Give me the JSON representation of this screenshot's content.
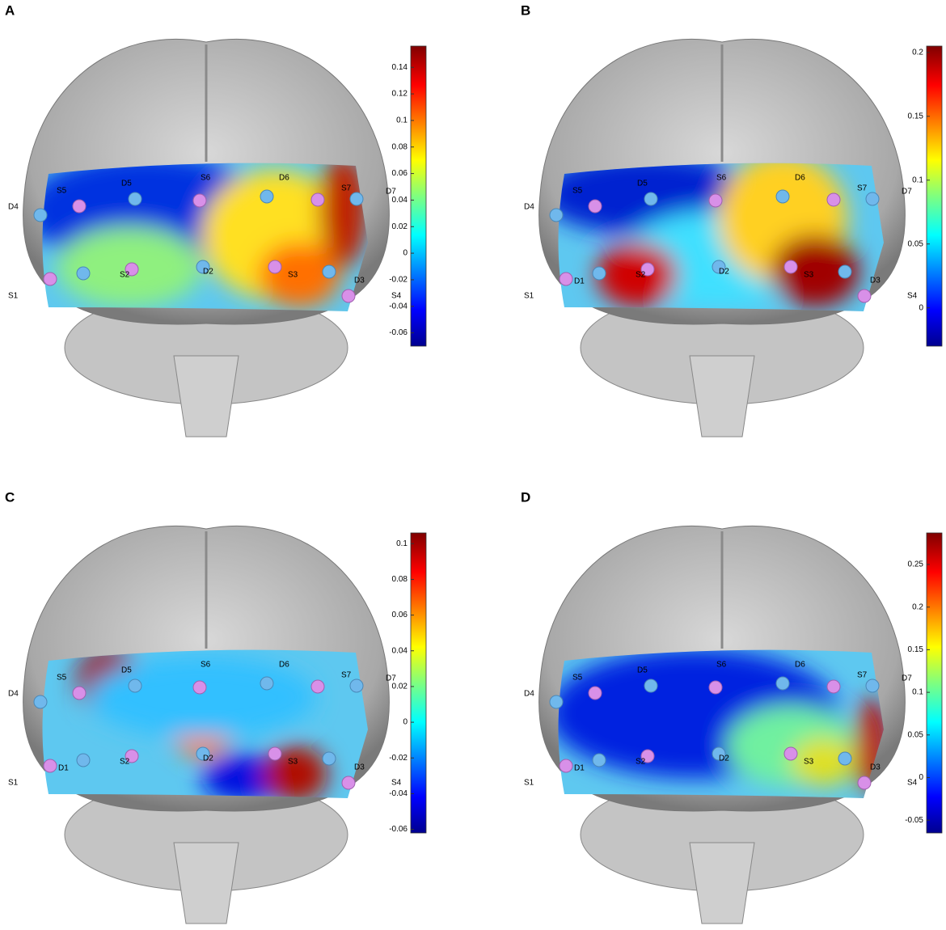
{
  "panels": [
    {
      "label": "A",
      "colorbar": {
        "lim": [
          -0.07,
          0.156
        ],
        "ticks": [
          -0.06,
          -0.04,
          -0.02,
          0,
          0.02,
          0.04,
          0.06,
          0.08,
          0.1,
          0.12,
          0.14
        ]
      },
      "channels": [
        "S5",
        "D5",
        "S6",
        "D6",
        "S7",
        "D7",
        "D4",
        "S2",
        "D2",
        "S3",
        "D3",
        "S4",
        "S1"
      ]
    },
    {
      "label": "B",
      "colorbar": {
        "lim": [
          -0.03,
          0.205
        ],
        "ticks": [
          0,
          0.05,
          0.1,
          0.15,
          0.2
        ]
      },
      "channels": [
        "S5",
        "D5",
        "S6",
        "D6",
        "S7",
        "D7",
        "D4",
        "S2",
        "D2",
        "S3",
        "D3",
        "S4",
        "S1",
        "D1"
      ]
    },
    {
      "label": "C",
      "colorbar": {
        "lim": [
          -0.062,
          0.106
        ],
        "ticks": [
          -0.06,
          -0.04,
          -0.02,
          0,
          0.02,
          0.04,
          0.06,
          0.08,
          0.1
        ]
      },
      "channels": [
        "S5",
        "D5",
        "S6",
        "D6",
        "S7",
        "D7",
        "D4",
        "S2",
        "D2",
        "S3",
        "D3",
        "S4",
        "S1",
        "D1"
      ]
    },
    {
      "label": "D",
      "colorbar": {
        "lim": [
          -0.065,
          0.287
        ],
        "ticks": [
          -0.05,
          0,
          0.05,
          0.1,
          0.15,
          0.2,
          0.25
        ]
      },
      "channels": [
        "S5",
        "D5",
        "S6",
        "D6",
        "S7",
        "D7",
        "D4",
        "S2",
        "D2",
        "S3",
        "D3",
        "S4",
        "S1",
        "D1"
      ]
    }
  ]
}
